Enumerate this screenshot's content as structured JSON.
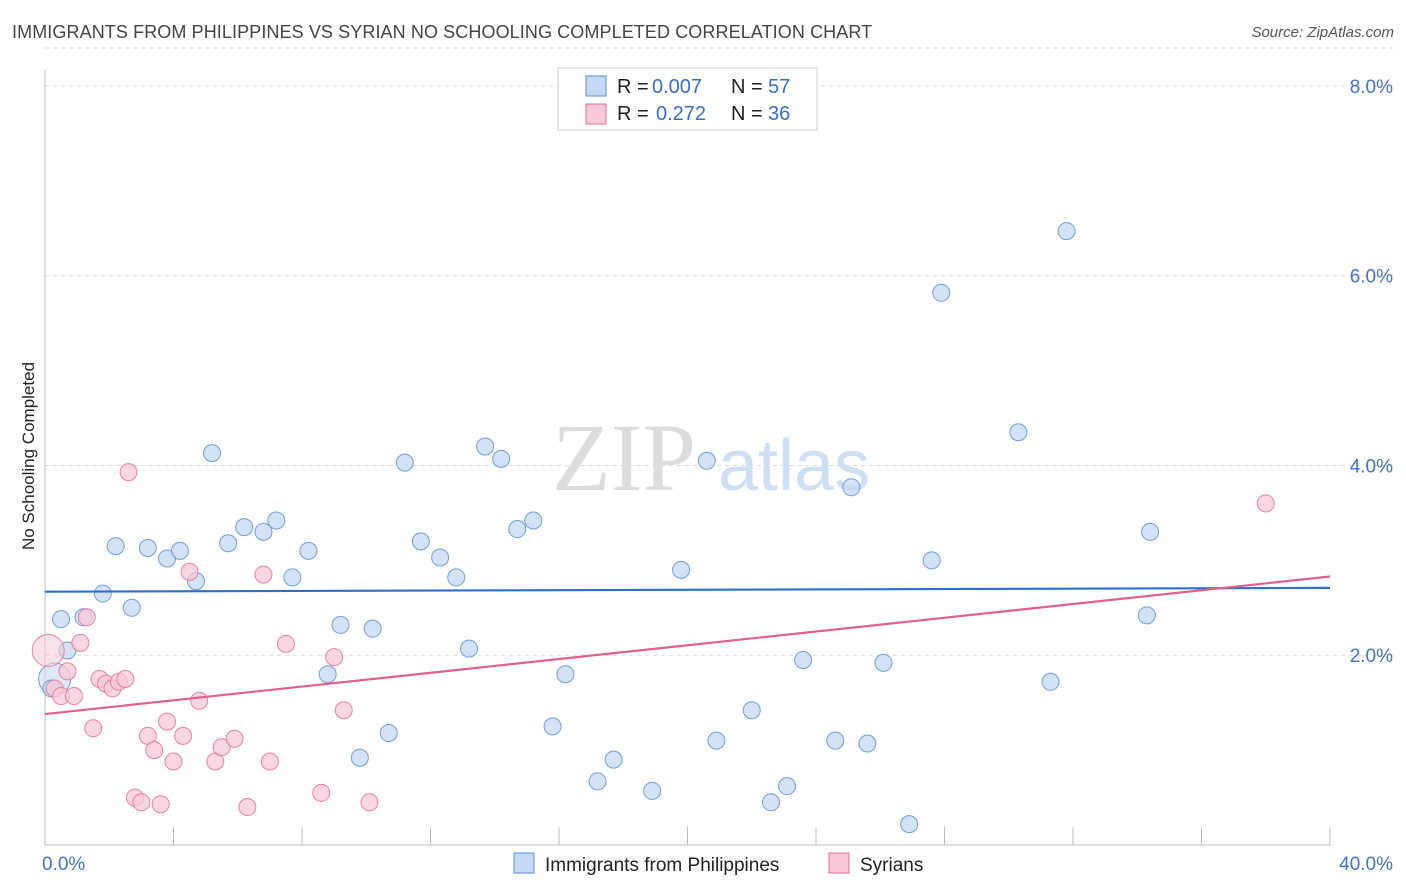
{
  "title": "IMMIGRANTS FROM PHILIPPINES VS SYRIAN NO SCHOOLING COMPLETED CORRELATION CHART",
  "source": "Source: ZipAtlas.com",
  "watermark": {
    "zip": "ZIP",
    "atlas": "atlas"
  },
  "colors": {
    "blue": "#5b8fd6",
    "blue_fill": "#c5d8f3",
    "pink": "#e46e98",
    "pink_fill": "#f8c8d8",
    "grid": "#d8d8d8"
  },
  "legend": {
    "rows": [
      {
        "r_label": "R =",
        "r_value": "0.007",
        "n_label": "N =",
        "n_value": "57"
      },
      {
        "r_label": "R =",
        "r_value": "0.272",
        "n_label": "N =",
        "n_value": "36"
      }
    ]
  },
  "chart_data": {
    "type": "scatter",
    "title": "IMMIGRANTS FROM PHILIPPINES VS SYRIAN NO SCHOOLING COMPLETED CORRELATION CHART",
    "xlabel": "",
    "ylabel": "No Schooling Completed",
    "xlim": [
      0,
      40
    ],
    "ylim": [
      0,
      8.4
    ],
    "x_tick_labels": [
      "0.0%",
      "40.0%"
    ],
    "y_ticks": [
      2,
      4,
      6,
      8
    ],
    "y_tick_labels": [
      "2.0%",
      "4.0%",
      "6.0%",
      "8.0%"
    ],
    "grid": true,
    "legend_position": "top-center",
    "series": [
      {
        "name": "Immigrants from Philippines",
        "color": "#5b8fd6",
        "trend": {
          "x": [
            0,
            40
          ],
          "y": [
            2.67,
            2.71
          ]
        },
        "points": [
          [
            0.3,
            1.75
          ],
          [
            0.7,
            2.05
          ],
          [
            1.2,
            2.4
          ],
          [
            1.8,
            2.65
          ],
          [
            2.2,
            3.15
          ],
          [
            2.7,
            2.5
          ],
          [
            3.2,
            3.13
          ],
          [
            3.8,
            3.02
          ],
          [
            4.2,
            3.1
          ],
          [
            4.7,
            2.78
          ],
          [
            5.2,
            4.13
          ],
          [
            5.7,
            3.18
          ],
          [
            6.2,
            3.35
          ],
          [
            6.8,
            3.3
          ],
          [
            7.2,
            3.42
          ],
          [
            7.7,
            2.82
          ],
          [
            8.2,
            3.1
          ],
          [
            8.8,
            1.8
          ],
          [
            9.2,
            2.32
          ],
          [
            9.8,
            0.92
          ],
          [
            10.2,
            2.28
          ],
          [
            10.7,
            1.18
          ],
          [
            11.2,
            4.03
          ],
          [
            11.7,
            3.2
          ],
          [
            12.3,
            3.03
          ],
          [
            12.8,
            2.82
          ],
          [
            13.2,
            2.07
          ],
          [
            13.7,
            4.2
          ],
          [
            14.2,
            4.07
          ],
          [
            14.7,
            3.33
          ],
          [
            15.2,
            3.42
          ],
          [
            15.8,
            1.25
          ],
          [
            16.2,
            1.8
          ],
          [
            17.2,
            0.67
          ],
          [
            17.7,
            0.9
          ],
          [
            18.9,
            0.57
          ],
          [
            19.8,
            2.9
          ],
          [
            20.6,
            4.05
          ],
          [
            20.9,
            1.1
          ],
          [
            22.0,
            1.42
          ],
          [
            22.6,
            0.45
          ],
          [
            23.1,
            0.62
          ],
          [
            23.6,
            1.95
          ],
          [
            24.6,
            1.1
          ],
          [
            25.1,
            3.77
          ],
          [
            25.6,
            1.07
          ],
          [
            26.1,
            1.92
          ],
          [
            26.9,
            0.22
          ],
          [
            27.6,
            3.0
          ],
          [
            27.9,
            5.82
          ],
          [
            30.3,
            4.35
          ],
          [
            31.3,
            1.72
          ],
          [
            31.8,
            6.47
          ],
          [
            34.3,
            2.42
          ],
          [
            34.4,
            3.3
          ],
          [
            0.5,
            2.38
          ],
          [
            0.2,
            1.65
          ]
        ]
      },
      {
        "name": "Syrians",
        "color": "#e46e98",
        "trend": {
          "x": [
            0,
            40
          ],
          "y": [
            1.38,
            2.83
          ]
        },
        "points": [
          [
            0.1,
            2.05
          ],
          [
            0.3,
            1.65
          ],
          [
            0.5,
            1.57
          ],
          [
            0.7,
            1.83
          ],
          [
            0.9,
            1.57
          ],
          [
            1.1,
            2.13
          ],
          [
            1.3,
            2.4
          ],
          [
            1.5,
            1.23
          ],
          [
            1.7,
            1.75
          ],
          [
            1.9,
            1.7
          ],
          [
            2.1,
            1.65
          ],
          [
            2.3,
            1.72
          ],
          [
            2.5,
            1.75
          ],
          [
            2.6,
            3.93
          ],
          [
            2.8,
            0.5
          ],
          [
            3.0,
            0.45
          ],
          [
            3.2,
            1.15
          ],
          [
            3.4,
            1.0
          ],
          [
            3.6,
            0.43
          ],
          [
            3.8,
            1.3
          ],
          [
            4.0,
            0.88
          ],
          [
            4.3,
            1.15
          ],
          [
            4.5,
            2.88
          ],
          [
            4.8,
            1.52
          ],
          [
            5.3,
            0.88
          ],
          [
            5.5,
            1.03
          ],
          [
            5.9,
            1.12
          ],
          [
            6.3,
            0.4
          ],
          [
            6.8,
            2.85
          ],
          [
            7.0,
            0.88
          ],
          [
            7.5,
            2.12
          ],
          [
            8.6,
            0.55
          ],
          [
            9.0,
            1.98
          ],
          [
            9.3,
            1.42
          ],
          [
            10.1,
            0.45
          ],
          [
            38.0,
            3.6
          ]
        ]
      }
    ]
  }
}
